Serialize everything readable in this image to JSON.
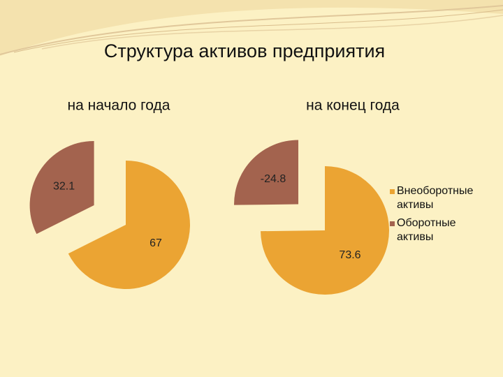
{
  "title": "Структура активов предприятия",
  "chart_data": [
    {
      "type": "pie",
      "title": "на  начало года",
      "values": [
        67,
        32.1
      ],
      "colors": [
        "#eba433",
        "#a3634e"
      ]
    },
    {
      "type": "pie",
      "title": "на конец года",
      "categories": [
        "Внеоборотные активы",
        "Оборотные активы"
      ],
      "values": [
        73.6,
        -24.8
      ],
      "colors": [
        "#eba433",
        "#a3634e"
      ]
    }
  ]
}
